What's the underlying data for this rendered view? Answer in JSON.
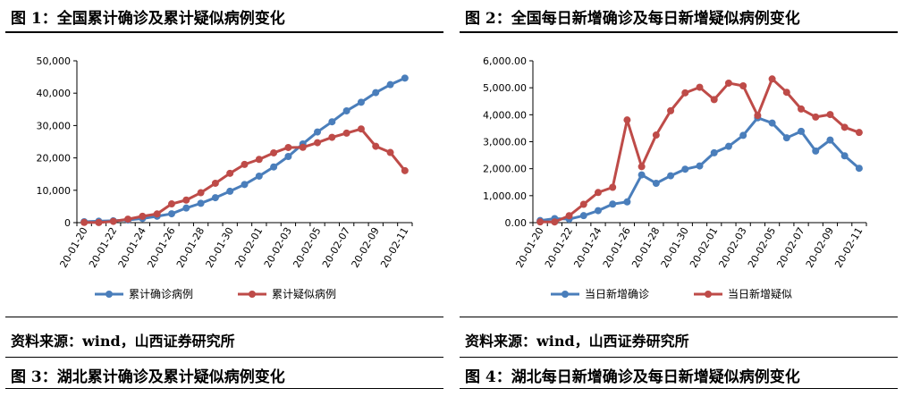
{
  "figures": [
    {
      "title": "图 1：全国累计确诊及累计疑似病例变化",
      "source": "资料来源：wind，山西证券研究所",
      "next_title": "图 3：湖北累计确诊及累计疑似病例变化"
    },
    {
      "title": "图 2：全国每日新增确诊及每日新增疑似病例变化",
      "source": "资料来源：wind，山西证券研究所",
      "next_title": "图 4：湖北每日新增确诊及每日新增疑似病例变化"
    }
  ],
  "chart_data": [
    {
      "type": "line",
      "x": [
        "20-01-20",
        "20-01-21",
        "20-01-22",
        "20-01-23",
        "20-01-24",
        "20-01-25",
        "20-01-26",
        "20-01-27",
        "20-01-28",
        "20-01-29",
        "20-01-30",
        "20-01-31",
        "20-02-01",
        "20-02-02",
        "20-02-03",
        "20-02-04",
        "20-02-05",
        "20-02-06",
        "20-02-07",
        "20-02-08",
        "20-02-09",
        "20-02-10",
        "20-02-11"
      ],
      "xticks": [
        "20-01-20",
        "20-01-22",
        "20-01-24",
        "20-01-26",
        "20-01-28",
        "20-01-30",
        "20-02-01",
        "20-02-03",
        "20-02-05",
        "20-02-07",
        "20-02-09",
        "20-02-11"
      ],
      "yticks": [
        "0",
        "10,000",
        "20,000",
        "30,000",
        "40,000",
        "50,000"
      ],
      "ylim": [
        0,
        50000
      ],
      "series": [
        {
          "name": "累计确诊病例",
          "color": "#4a7ebb",
          "values": [
            291,
            440,
            571,
            830,
            1287,
            1975,
            2744,
            4515,
            5974,
            7711,
            9692,
            11791,
            14380,
            17205,
            20438,
            24324,
            28018,
            31161,
            34546,
            37198,
            40171,
            42638,
            44653
          ]
        },
        {
          "name": "累计疑似病例",
          "color": "#be4b48",
          "values": [
            54,
            37,
            393,
            1072,
            1965,
            2684,
            5794,
            6973,
            9239,
            12167,
            15238,
            17988,
            19544,
            21558,
            23214,
            23260,
            24702,
            26359,
            27657,
            28942,
            23589,
            21675,
            16067
          ]
        }
      ]
    },
    {
      "type": "line",
      "x": [
        "20-01-20",
        "20-01-21",
        "20-01-22",
        "20-01-23",
        "20-01-24",
        "20-01-25",
        "20-01-26",
        "20-01-27",
        "20-01-28",
        "20-01-29",
        "20-01-30",
        "20-01-31",
        "20-02-01",
        "20-02-02",
        "20-02-03",
        "20-02-04",
        "20-02-05",
        "20-02-06",
        "20-02-07",
        "20-02-08",
        "20-02-09",
        "20-02-10",
        "20-02-11"
      ],
      "xticks": [
        "20-01-20",
        "20-01-22",
        "20-01-24",
        "20-01-26",
        "20-01-28",
        "20-01-30",
        "20-02-01",
        "20-02-03",
        "20-02-05",
        "20-02-07",
        "20-02-09",
        "20-02-11"
      ],
      "yticks": [
        "0.00",
        "1,000.00",
        "2,000.00",
        "3,000.00",
        "4,000.00",
        "5,000.00",
        "6,000.00"
      ],
      "ylim": [
        0,
        6000
      ],
      "series": [
        {
          "name": "当日新增确诊",
          "color": "#4a7ebb",
          "values": [
            77,
            149,
            131,
            259,
            444,
            688,
            769,
            1771,
            1459,
            1737,
            1982,
            2102,
            2590,
            2829,
            3235,
            3887,
            3694,
            3143,
            3385,
            2656,
            3062,
            2478,
            2015
          ]
        },
        {
          "name": "当日新增疑似",
          "color": "#be4b48",
          "values": [
            27,
            26,
            257,
            680,
            1118,
            1309,
            3806,
            2077,
            3248,
            4148,
            4812,
            5019,
            4562,
            5173,
            5072,
            3971,
            5328,
            4833,
            4214,
            3916,
            4008,
            3536,
            3342
          ]
        }
      ]
    }
  ]
}
